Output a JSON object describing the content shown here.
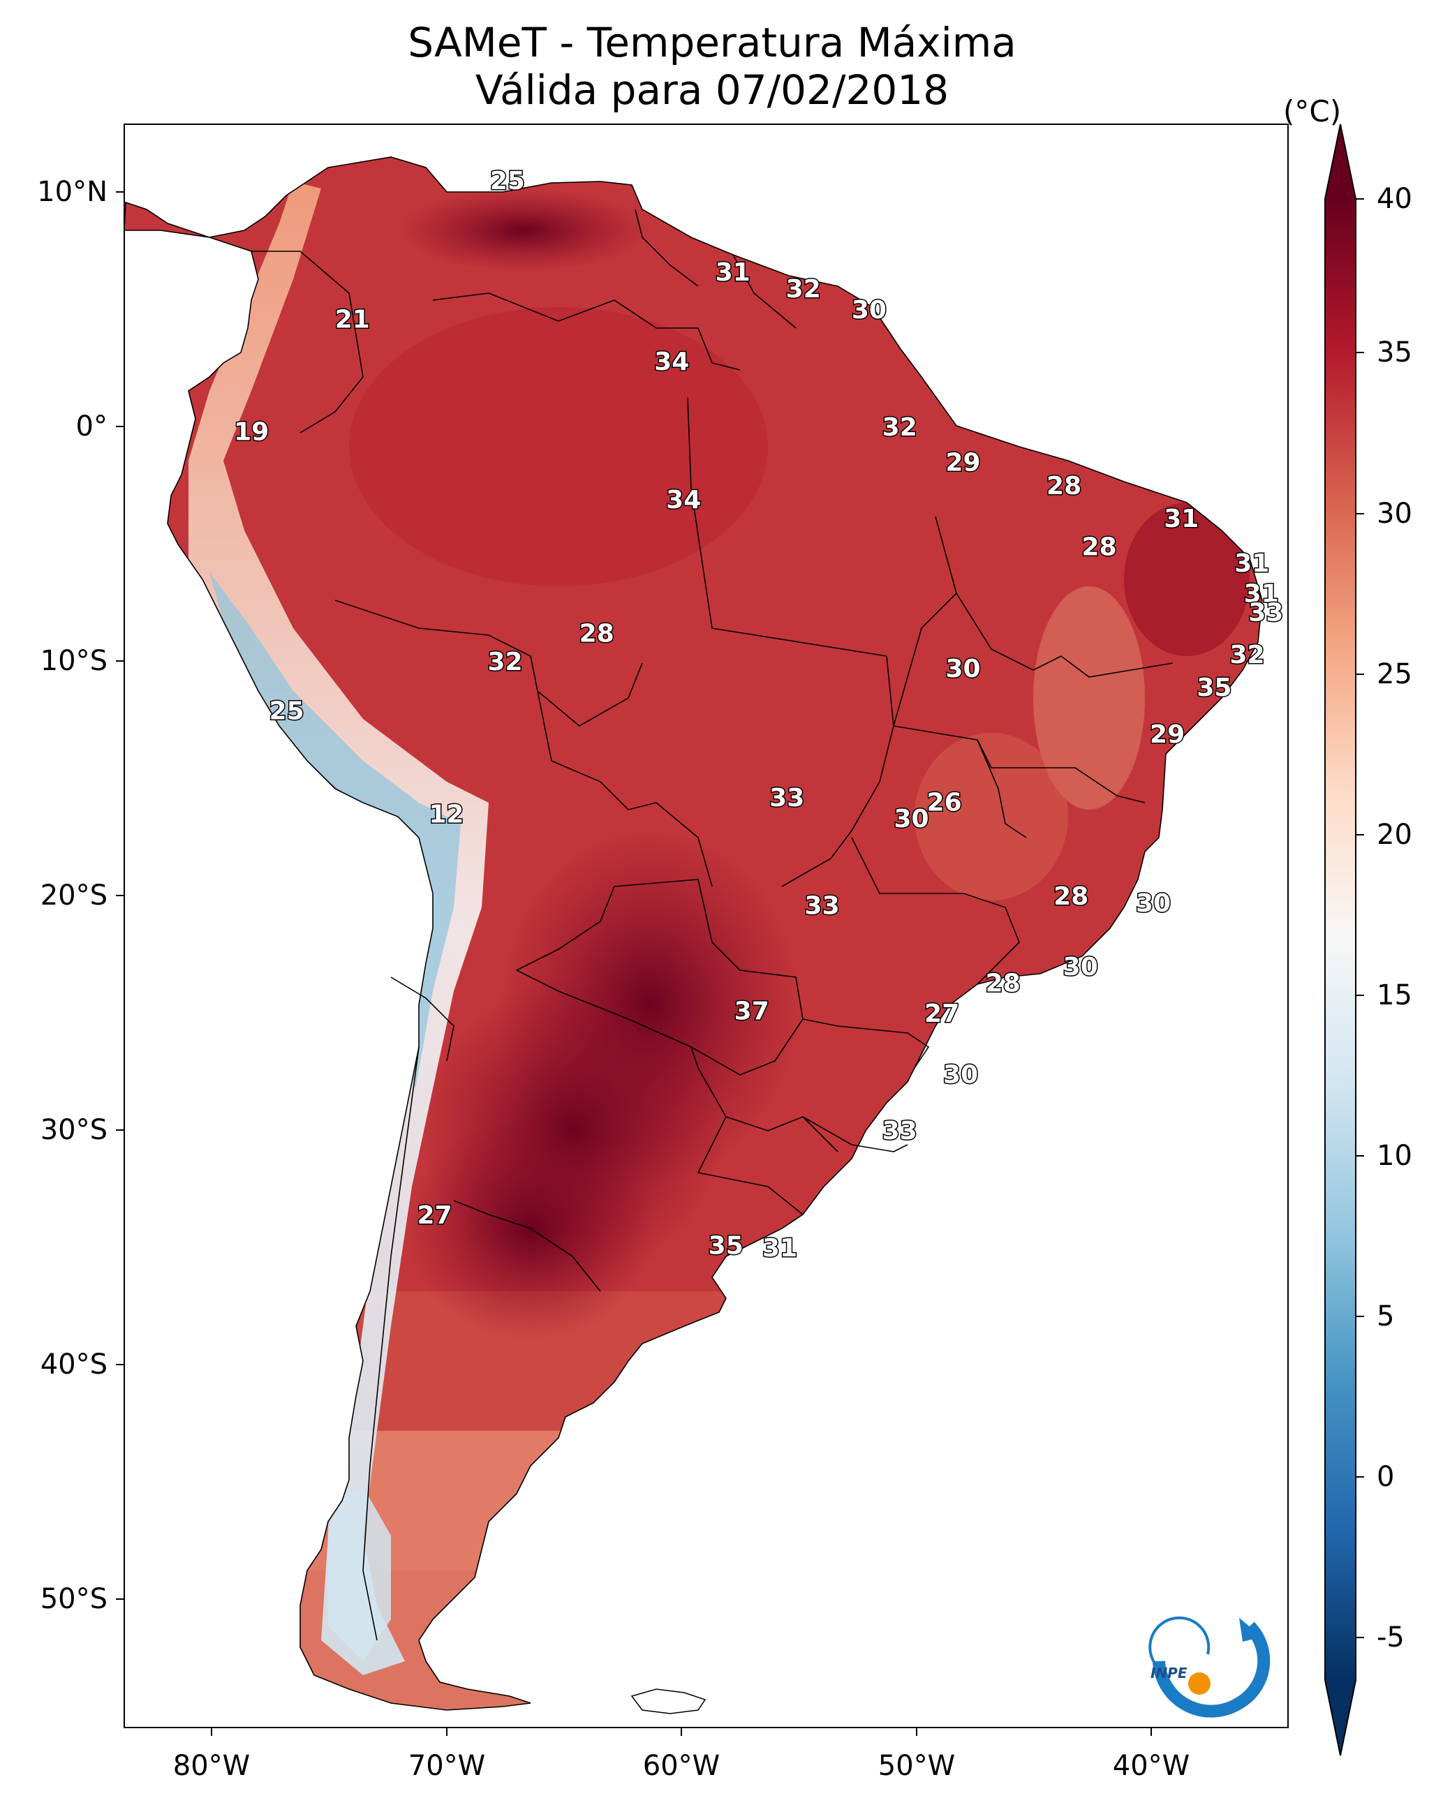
{
  "title": {
    "line1": "SAMeT - Temperatura Máxima",
    "line2": "Válida para 07/02/2018"
  },
  "colorbar": {
    "unit": "(°C)",
    "ticks": [
      "40",
      "35",
      "30",
      "25",
      "20",
      "15",
      "10",
      "5",
      "0",
      "-5"
    ],
    "colors": [
      "#053061",
      "#2166ac",
      "#4393c3",
      "#92c5de",
      "#d1e5f0",
      "#f7f7f7",
      "#fddbc7",
      "#f4a582",
      "#d6604d",
      "#b2182b",
      "#67001f"
    ]
  },
  "axes": {
    "lat_labels": [
      "10°N",
      "0°",
      "10°S",
      "20°S",
      "30°S",
      "40°S",
      "50°S"
    ],
    "lon_labels": [
      "80°W",
      "70°W",
      "60°W",
      "50°W",
      "40°W"
    ]
  },
  "logo": {
    "text": "INPE"
  },
  "labels": [
    {
      "t": "25",
      "lon": -67.4,
      "lat": 10.5
    },
    {
      "t": "31",
      "lon": -57.8,
      "lat": 6.6
    },
    {
      "t": "32",
      "lon": -54.8,
      "lat": 5.9
    },
    {
      "t": "30",
      "lon": -52.0,
      "lat": 5.0
    },
    {
      "t": "21",
      "lon": -74.0,
      "lat": 4.6
    },
    {
      "t": "34",
      "lon": -60.4,
      "lat": 2.8
    },
    {
      "t": "19",
      "lon": -78.3,
      "lat": -0.2
    },
    {
      "t": "32",
      "lon": -50.7,
      "lat": 0.0
    },
    {
      "t": "29",
      "lon": -48.0,
      "lat": -1.5
    },
    {
      "t": "28",
      "lon": -43.7,
      "lat": -2.5
    },
    {
      "t": "34",
      "lon": -59.9,
      "lat": -3.1
    },
    {
      "t": "31",
      "lon": -38.7,
      "lat": -3.9
    },
    {
      "t": "28",
      "lon": -42.2,
      "lat": -5.1
    },
    {
      "t": "31",
      "lon": -35.7,
      "lat": -5.8
    },
    {
      "t": "31",
      "lon": -35.3,
      "lat": -7.1
    },
    {
      "t": "33",
      "lon": -35.1,
      "lat": -7.9
    },
    {
      "t": "28",
      "lon": -63.6,
      "lat": -8.8
    },
    {
      "t": "32",
      "lon": -67.5,
      "lat": -10.0
    },
    {
      "t": "32",
      "lon": -35.9,
      "lat": -9.7
    },
    {
      "t": "30",
      "lon": -48.0,
      "lat": -10.3
    },
    {
      "t": "35",
      "lon": -37.3,
      "lat": -11.1
    },
    {
      "t": "25",
      "lon": -76.8,
      "lat": -12.1
    },
    {
      "t": "29",
      "lon": -39.3,
      "lat": -13.1
    },
    {
      "t": "33",
      "lon": -55.5,
      "lat": -15.8
    },
    {
      "t": "26",
      "lon": -48.8,
      "lat": -16.0
    },
    {
      "t": "12",
      "lon": -70.0,
      "lat": -16.5
    },
    {
      "t": "30",
      "lon": -50.2,
      "lat": -16.7
    },
    {
      "t": "28",
      "lon": -43.4,
      "lat": -20.0
    },
    {
      "t": "30",
      "lon": -39.9,
      "lat": -20.3
    },
    {
      "t": "33",
      "lon": -54.0,
      "lat": -20.4
    },
    {
      "t": "30",
      "lon": -43.0,
      "lat": -23.0
    },
    {
      "t": "28",
      "lon": -46.3,
      "lat": -23.7
    },
    {
      "t": "37",
      "lon": -57.0,
      "lat": -24.9
    },
    {
      "t": "27",
      "lon": -48.9,
      "lat": -25.0
    },
    {
      "t": "30",
      "lon": -48.1,
      "lat": -27.6
    },
    {
      "t": "33",
      "lon": -50.7,
      "lat": -30.0
    },
    {
      "t": "27",
      "lon": -70.5,
      "lat": -33.6
    },
    {
      "t": "35",
      "lon": -58.1,
      "lat": -34.9
    },
    {
      "t": "31",
      "lon": -55.8,
      "lat": -35.0
    }
  ]
}
